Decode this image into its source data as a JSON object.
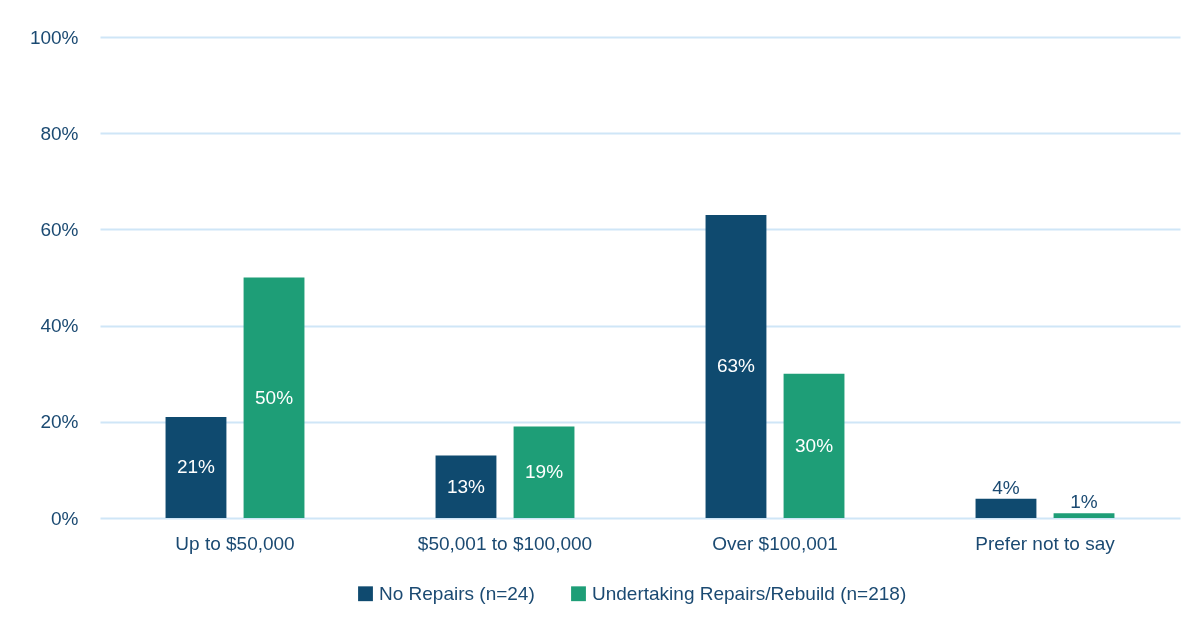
{
  "chart_data": {
    "type": "bar",
    "categories": [
      "Up to $50,000",
      "$50,001 to $100,000",
      "Over $100,001",
      "Prefer not to say"
    ],
    "series": [
      {
        "name": "No Repairs (n=24)",
        "color": "#0f4a6f",
        "values": [
          21,
          13,
          63,
          4
        ],
        "value_labels": [
          "21%",
          "13%",
          "63%",
          "4%"
        ]
      },
      {
        "name": "Undertaking Repairs/Rebuild (n=218)",
        "color": "#1e9e77",
        "values": [
          50,
          19,
          30,
          1
        ],
        "value_labels": [
          "50%",
          "19%",
          "30%",
          "1%"
        ]
      }
    ],
    "ylim": [
      0,
      100
    ],
    "yticks": [
      {
        "value": 0,
        "label": "0%"
      },
      {
        "value": 20,
        "label": "20%"
      },
      {
        "value": 40,
        "label": "40%"
      },
      {
        "value": 60,
        "label": "60%"
      },
      {
        "value": 80,
        "label": "80%"
      },
      {
        "value": 100,
        "label": "100%"
      }
    ],
    "grid": "y",
    "legend": "bottom"
  }
}
